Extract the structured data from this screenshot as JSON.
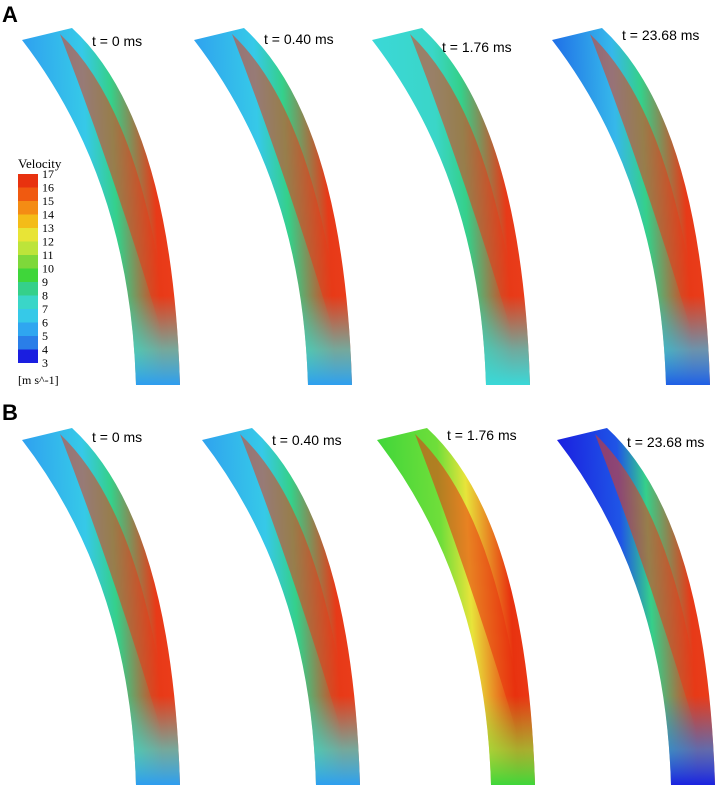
{
  "panels": [
    {
      "letter": "A",
      "frames": [
        {
          "label": "t = 0 ms",
          "colors": [
            "#2fa0f0",
            "#36c9e8",
            "#35d08a",
            "#e83a18",
            "#ee3f1c",
            "#45d6d2",
            "#2e9df0"
          ]
        },
        {
          "label": "t = 0.40 ms",
          "colors": [
            "#2fa2ef",
            "#36c9e8",
            "#35d08a",
            "#e73a18",
            "#ee3f1c",
            "#45d6d2",
            "#2e9ff0"
          ]
        },
        {
          "label": "t = 1.76 ms",
          "colors": [
            "#3ad8d8",
            "#3ad6c8",
            "#35d08a",
            "#e73a18",
            "#ee3f1c",
            "#3fd8d5",
            "#3ad8d8"
          ]
        },
        {
          "label": "t = 23.68 ms",
          "colors": [
            "#1f6ee8",
            "#36b8ea",
            "#35d08a",
            "#e73a18",
            "#ee3f1c",
            "#38b8ea",
            "#1f5ee6"
          ]
        }
      ]
    },
    {
      "letter": "B",
      "frames": [
        {
          "label": "t = 0 ms",
          "colors": [
            "#2fa0f0",
            "#36c9e8",
            "#35d08a",
            "#e83a18",
            "#ee3f1c",
            "#45d6d2",
            "#2e9df0"
          ]
        },
        {
          "label": "t = 0.40 ms",
          "colors": [
            "#2fa2ef",
            "#36c9e8",
            "#35d08a",
            "#e73a18",
            "#ee3f1c",
            "#45d6d2",
            "#2e9ff0"
          ]
        },
        {
          "label": "t = 1.76 ms",
          "colors": [
            "#3fd63a",
            "#6fde3a",
            "#e8e43a",
            "#e8320f",
            "#ee3f1c",
            "#8fe03a",
            "#3fd63a"
          ]
        },
        {
          "label": "t = 23.68 ms",
          "colors": [
            "#1a1ee0",
            "#1f55e6",
            "#35d08a",
            "#e73a18",
            "#ee3f1c",
            "#2a7ee8",
            "#1a22e0"
          ]
        }
      ]
    }
  ],
  "legend": {
    "title": "Velocity",
    "unit": "[m s^-1]",
    "ticks": [
      "17",
      "16",
      "15",
      "14",
      "13",
      "12",
      "11",
      "10",
      "9",
      "8",
      "7",
      "6",
      "5",
      "4",
      "3"
    ],
    "colors": [
      "#e8320f",
      "#f05a10",
      "#f48c14",
      "#f4bc18",
      "#e8e436",
      "#bde43a",
      "#7ed83a",
      "#3fd63a",
      "#35d08a",
      "#3ad6c8",
      "#36c9e8",
      "#2fa6f0",
      "#2a7ee8",
      "#1a1ee0"
    ]
  }
}
